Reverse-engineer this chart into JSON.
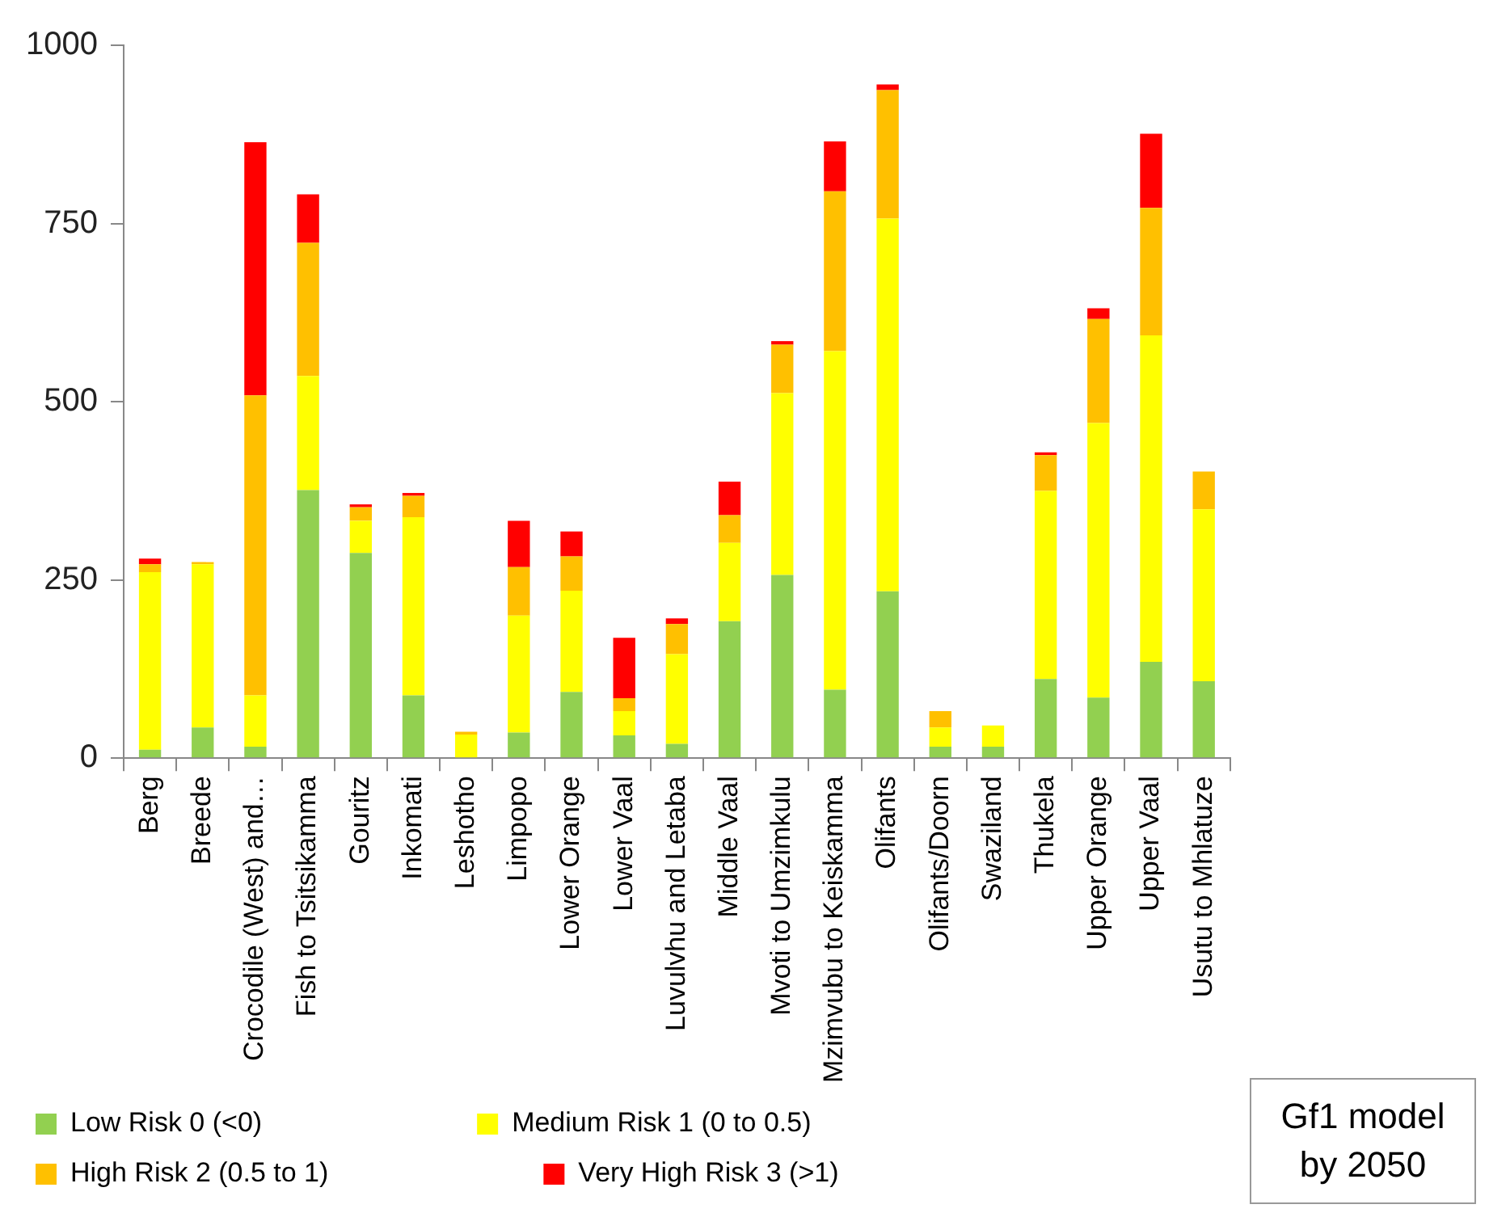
{
  "chart_data": {
    "type": "bar",
    "stacked": true,
    "categories": [
      "Berg",
      "Breede",
      "Crocodile (West) and…",
      "Fish to Tsitsikamma",
      "Gouritz",
      "Inkomati",
      "Leshotho",
      "Limpopo",
      "Lower Orange",
      "Lower Vaal",
      "Luvulvhu and Letaba",
      "Middle Vaal",
      "Mvoti to Umzimkulu",
      "Mzimvubu to Keiskamma",
      "Olifants",
      "Olifants/Doorn",
      "Swaziland",
      "Thukela",
      "Upper Orange",
      "Upper Vaal",
      "Usutu to Mhlatuze"
    ],
    "series": [
      {
        "name": "Low Risk 0 (<0)",
        "color": "#92d050",
        "values": [
          12,
          43,
          16,
          376,
          288,
          88,
          0,
          36,
          93,
          32,
          20,
          192,
          257,
          96,
          234,
          16,
          16,
          111,
          85,
          135,
          108
        ]
      },
      {
        "name": "Medium Risk 1 (0 to 0.5)",
        "color": "#ffff00",
        "values": [
          249,
          229,
          72,
          160,
          45,
          250,
          33,
          164,
          142,
          34,
          126,
          110,
          255,
          475,
          523,
          27,
          30,
          264,
          385,
          458,
          241
        ]
      },
      {
        "name": "High Risk 2 (0.5 to 1)",
        "color": "#ffc000",
        "values": [
          11,
          3,
          421,
          187,
          19,
          30,
          4,
          68,
          48,
          18,
          42,
          39,
          68,
          224,
          180,
          23,
          0,
          50,
          146,
          179,
          53
        ]
      },
      {
        "name": "Very High Risk 3 (>1)",
        "color": "#ff0000",
        "values": [
          8,
          0,
          355,
          68,
          4,
          4,
          0,
          65,
          35,
          85,
          8,
          47,
          5,
          70,
          8,
          0,
          0,
          4,
          15,
          104,
          0
        ]
      }
    ],
    "ylim": [
      0,
      1000
    ],
    "yticks": [
      0,
      250,
      500,
      750,
      1000
    ],
    "grid": false,
    "legend": "bottom",
    "annotations": [
      "Gf1 model by 2050"
    ]
  }
}
